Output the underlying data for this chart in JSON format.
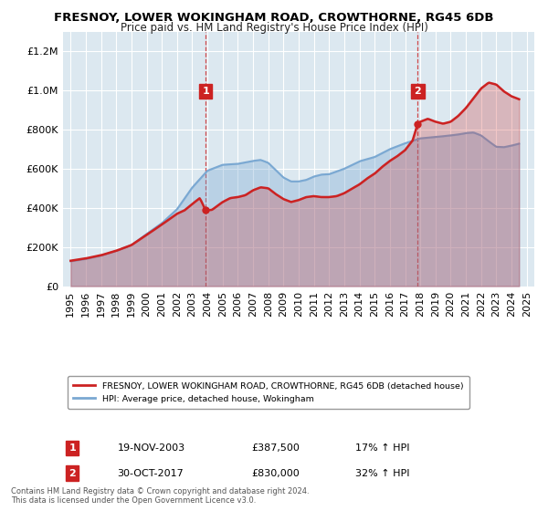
{
  "title": "FRESNOY, LOWER WOKINGHAM ROAD, CROWTHORNE, RG45 6DB",
  "subtitle": "Price paid vs. HM Land Registry's House Price Index (HPI)",
  "legend_line1": "FRESNOY, LOWER WOKINGHAM ROAD, CROWTHORNE, RG45 6DB (detached house)",
  "legend_line2": "HPI: Average price, detached house, Wokingham",
  "annotation1_date": "19-NOV-2003",
  "annotation1_price": "£387,500",
  "annotation1_hpi": "17% ↑ HPI",
  "annotation1_year": 2003.88,
  "annotation1_value": 387500,
  "annotation2_date": "30-OCT-2017",
  "annotation2_price": "£830,000",
  "annotation2_hpi": "32% ↑ HPI",
  "annotation2_year": 2017.83,
  "annotation2_value": 830000,
  "footer_line1": "Contains HM Land Registry data © Crown copyright and database right 2024.",
  "footer_line2": "This data is licensed under the Open Government Licence v3.0.",
  "hpi_color": "#7aa8d2",
  "price_color": "#cc2222",
  "ylim": [
    0,
    1300000
  ],
  "yticks": [
    0,
    200000,
    400000,
    600000,
    800000,
    1000000,
    1200000
  ],
  "plot_bg_color": "#dce8f0",
  "xlim_left": 1994.5,
  "xlim_right": 2025.5,
  "xtick_years": [
    1995,
    1996,
    1997,
    1998,
    1999,
    2000,
    2001,
    2002,
    2003,
    2004,
    2005,
    2006,
    2007,
    2008,
    2009,
    2010,
    2011,
    2012,
    2013,
    2014,
    2015,
    2016,
    2017,
    2018,
    2019,
    2020,
    2021,
    2022,
    2023,
    2024,
    2025
  ]
}
